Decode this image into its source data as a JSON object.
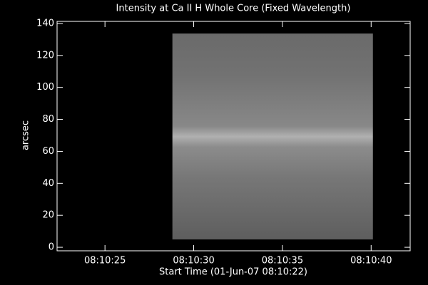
{
  "chart_data": {
    "type": "image",
    "title": "Intensity at Ca II H Whole Core (Fixed Wavelength)",
    "x_label": "Start Time (01-Jun-07 08:10:22)",
    "y_label": "arcsec",
    "xlim": [
      22.3,
      42.2
    ],
    "xticks": [
      {
        "value": 25,
        "label": "08:10:25"
      },
      {
        "value": 30,
        "label": "08:10:30"
      },
      {
        "value": 35,
        "label": "08:10:35"
      },
      {
        "value": 40,
        "label": "08:10:40"
      }
    ],
    "ylim": [
      -2.2,
      141.3
    ],
    "yticks": [
      0,
      20,
      40,
      60,
      80,
      100,
      120,
      140
    ],
    "image_x": [
      28.8,
      40.1
    ],
    "image_y": [
      4.9,
      133.7
    ]
  }
}
